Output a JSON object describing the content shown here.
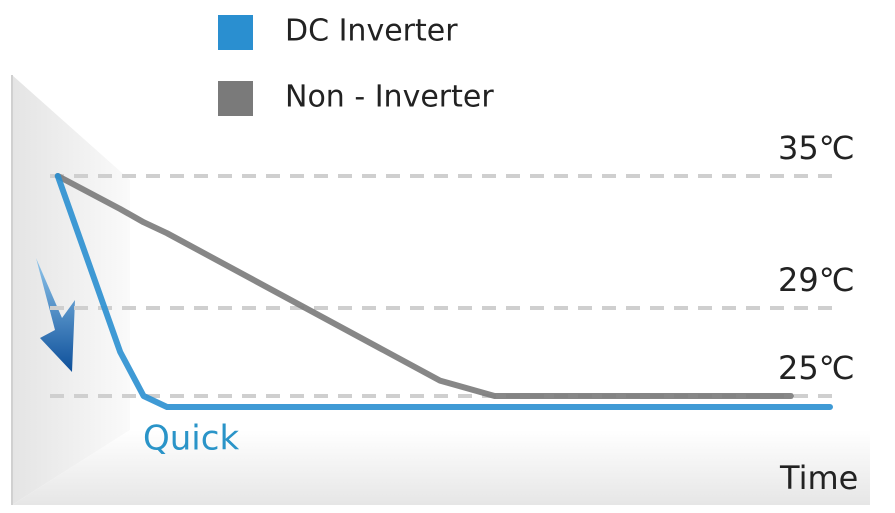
{
  "chart_data": {
    "type": "line",
    "x_label": "Time",
    "annotation": "Quick",
    "x": [
      1,
      9,
      12,
      15,
      50,
      57,
      95,
      100
    ],
    "xlim": [
      0,
      100
    ],
    "ylim": [
      21,
      40
    ],
    "yticks": [
      {
        "value": 35,
        "label": "35℃"
      },
      {
        "value": 29,
        "label": "29℃"
      },
      {
        "value": 25,
        "label": "25℃"
      }
    ],
    "grid": true,
    "series": [
      {
        "name": "DC Inverter",
        "color": "#2a8fd0",
        "values": [
          35,
          27,
          25,
          24.5,
          24.5,
          24.5,
          24.5,
          24.5
        ]
      },
      {
        "name": "Non - Inverter",
        "color": "#7a7a7a",
        "values": [
          35,
          33.5,
          32.9,
          32.4,
          25.7,
          25,
          25,
          null
        ]
      }
    ]
  }
}
